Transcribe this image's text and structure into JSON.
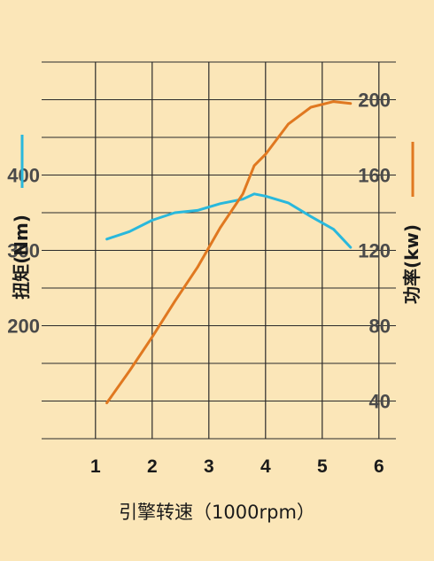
{
  "chart_data": {
    "type": "line",
    "xlabel": "引擎转速（1000rpm）",
    "x_ticks": [
      "1",
      "2",
      "3",
      "4",
      "5",
      "6"
    ],
    "xlim": [
      0.05,
      6.3
    ],
    "y_left": {
      "label": "扭矩(Nm)",
      "ticks": [
        "200",
        "300",
        "400"
      ],
      "lim": [
        50,
        550
      ],
      "color": "#29b8dc"
    },
    "y_right": {
      "label": "功率(kw)",
      "ticks": [
        "40",
        "80",
        "120",
        "160",
        "200"
      ],
      "lim": [
        20,
        220
      ],
      "color": "#e07820"
    },
    "grid": true,
    "series": [
      {
        "name": "扭矩(Nm)",
        "axis": "left",
        "color": "#29b8dc",
        "x": [
          1.2,
          1.6,
          2.0,
          2.4,
          2.8,
          3.2,
          3.6,
          3.8,
          4.0,
          4.4,
          4.8,
          5.2,
          5.5
        ],
        "y": [
          315,
          325,
          340,
          350,
          353,
          362,
          368,
          375,
          372,
          363,
          345,
          328,
          304
        ]
      },
      {
        "name": "功率(kw)",
        "axis": "right",
        "color": "#e07820",
        "x": [
          1.2,
          1.6,
          2.0,
          2.4,
          2.8,
          3.2,
          3.6,
          3.8,
          4.0,
          4.4,
          4.8,
          5.2,
          5.5
        ],
        "y": [
          39,
          56,
          74,
          93,
          111,
          132,
          150,
          165,
          171,
          187,
          196,
          199,
          198
        ]
      }
    ]
  }
}
